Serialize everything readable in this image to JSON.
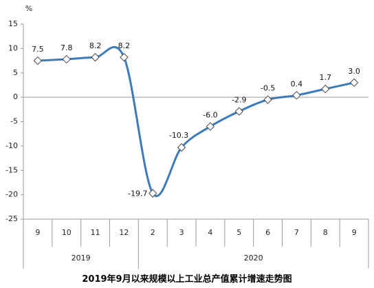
{
  "chart_data": {
    "type": "line",
    "title": "2019年9月以来规模以上工业总产值累计增速走势图",
    "unit": "%",
    "categories": [
      "9",
      "10",
      "11",
      "12",
      "2",
      "3",
      "4",
      "5",
      "6",
      "7",
      "8",
      "9"
    ],
    "values": [
      7.5,
      7.8,
      8.2,
      8.2,
      -19.7,
      -10.3,
      -6.0,
      -2.9,
      -0.5,
      0.4,
      1.7,
      3.0
    ],
    "data_labels": [
      "7.5",
      "7.8",
      "8.2",
      "8.2",
      "-19.7",
      "-10.3",
      "-6.0",
      "-2.9",
      "-0.5",
      "0.4",
      "1.7",
      "3.0"
    ],
    "year_groups": [
      {
        "label": "2019",
        "categories": [
          "9",
          "10",
          "11",
          "12"
        ]
      },
      {
        "label": "2020",
        "categories": [
          "2",
          "3",
          "4",
          "5",
          "6",
          "7",
          "8",
          "9"
        ]
      }
    ],
    "ylim": [
      -25,
      15
    ],
    "yticks": [
      -25,
      -20,
      -15,
      -10,
      -5,
      0,
      5,
      10,
      15
    ],
    "ytick_labels": [
      "-25",
      "-20",
      "-15",
      "-10",
      "-5",
      "0",
      "5",
      "10",
      "15"
    ],
    "grid": false,
    "line_color": "#3a7abf",
    "marker": "diamond",
    "marker_fill": "#ffffff",
    "marker_stroke": "#4a4a4a",
    "smooth": true
  }
}
